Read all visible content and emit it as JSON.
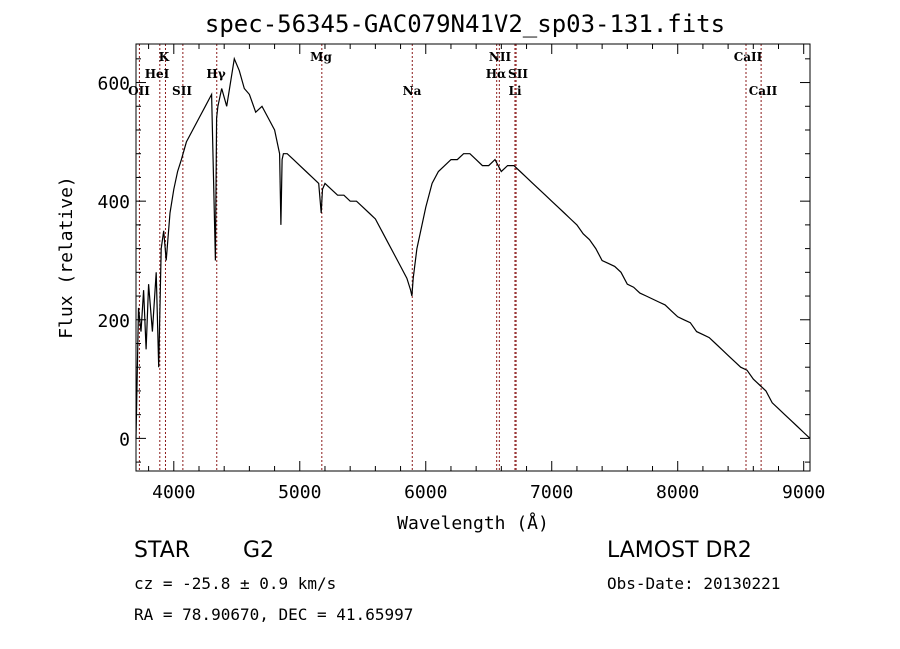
{
  "chart_data": {
    "type": "line",
    "title": "spec-56345-GAC079N41V2_sp03-131.fits",
    "xlabel": "Wavelength (Å)",
    "ylabel": "Flux (relative)",
    "xlim": [
      3700,
      9050
    ],
    "ylim": [
      -55,
      665
    ],
    "x_ticks": [
      4000,
      5000,
      6000,
      7000,
      8000,
      9000
    ],
    "y_ticks": [
      0,
      200,
      400,
      600
    ],
    "series": [
      {
        "x": [
          3700,
          3720,
          3740,
          3760,
          3780,
          3800,
          3830,
          3860,
          3880,
          3900,
          3920,
          3940,
          3970,
          4000,
          4030,
          4060,
          4100,
          4150,
          4200,
          4250,
          4300,
          4330,
          4340,
          4350,
          4380,
          4420,
          4450,
          4480,
          4520,
          4560,
          4600,
          4650,
          4700,
          4750,
          4800,
          4840,
          4850,
          4860,
          4870,
          4900,
          4950,
          5000,
          5050,
          5100,
          5150,
          5170,
          5180,
          5200,
          5250,
          5300,
          5350,
          5400,
          5450,
          5500,
          5550,
          5600,
          5650,
          5700,
          5750,
          5800,
          5850,
          5880,
          5890,
          5900,
          5930,
          5970,
          6000,
          6050,
          6100,
          6150,
          6200,
          6250,
          6300,
          6350,
          6400,
          6450,
          6500,
          6550,
          6600,
          6650,
          6700,
          6750,
          6800,
          6850,
          6900,
          6950,
          7000,
          7050,
          7100,
          7150,
          7200,
          7250,
          7300,
          7350,
          7400,
          7450,
          7500,
          7550,
          7600,
          7650,
          7700,
          7750,
          7800,
          7850,
          7900,
          7950,
          8000,
          8050,
          8100,
          8150,
          8200,
          8250,
          8300,
          8350,
          8400,
          8450,
          8500,
          8550,
          8600,
          8650,
          8700,
          8750,
          8800,
          8850,
          8900,
          8950,
          9000,
          9050
        ],
        "y": [
          0,
          220,
          180,
          250,
          150,
          260,
          180,
          280,
          120,
          320,
          350,
          300,
          380,
          420,
          450,
          470,
          500,
          520,
          540,
          560,
          580,
          300,
          540,
          560,
          590,
          560,
          600,
          640,
          620,
          590,
          580,
          550,
          560,
          540,
          520,
          480,
          360,
          470,
          480,
          480,
          470,
          460,
          450,
          440,
          430,
          380,
          420,
          430,
          420,
          410,
          410,
          400,
          400,
          390,
          380,
          370,
          350,
          330,
          310,
          290,
          270,
          250,
          240,
          270,
          320,
          360,
          390,
          430,
          450,
          460,
          470,
          470,
          480,
          480,
          470,
          460,
          460,
          470,
          450,
          460,
          460,
          450,
          440,
          430,
          420,
          410,
          400,
          390,
          380,
          370,
          360,
          345,
          335,
          320,
          300,
          295,
          290,
          280,
          260,
          255,
          245,
          240,
          235,
          230,
          225,
          215,
          205,
          200,
          195,
          180,
          175,
          170,
          160,
          150,
          140,
          130,
          120,
          115,
          100,
          90,
          80,
          60,
          50,
          40,
          30,
          20,
          10,
          0
        ]
      }
    ],
    "lines": [
      {
        "label": "OII",
        "x": 3727
      },
      {
        "label": "K",
        "x": 3934
      },
      {
        "label": "HeI",
        "x": 3889
      },
      {
        "label": "SII",
        "x": 4072
      },
      {
        "label": "Hγ",
        "x": 4341
      },
      {
        "label": "Mg",
        "x": 5175
      },
      {
        "label": "Na",
        "x": 5893
      },
      {
        "label": "NII",
        "x": 6584
      },
      {
        "label": "Hα",
        "x": 6563
      },
      {
        "label": "SII",
        "x": 6717
      },
      {
        "label": "Li",
        "x": 6708
      },
      {
        "label": "CaII",
        "x": 8542
      },
      {
        "label": "CaII",
        "x": 8662
      }
    ],
    "grid": false,
    "line_color": "#000000",
    "marker_line_color": "#8b1a1a"
  },
  "info": {
    "class": "STAR",
    "subclass": "G2",
    "survey": "LAMOST DR2",
    "cz": "cz = -25.8 ± 0.9 km/s",
    "obs_date": "Obs-Date: 20130221",
    "radec": "RA =  78.90670, DEC =  41.65997"
  }
}
